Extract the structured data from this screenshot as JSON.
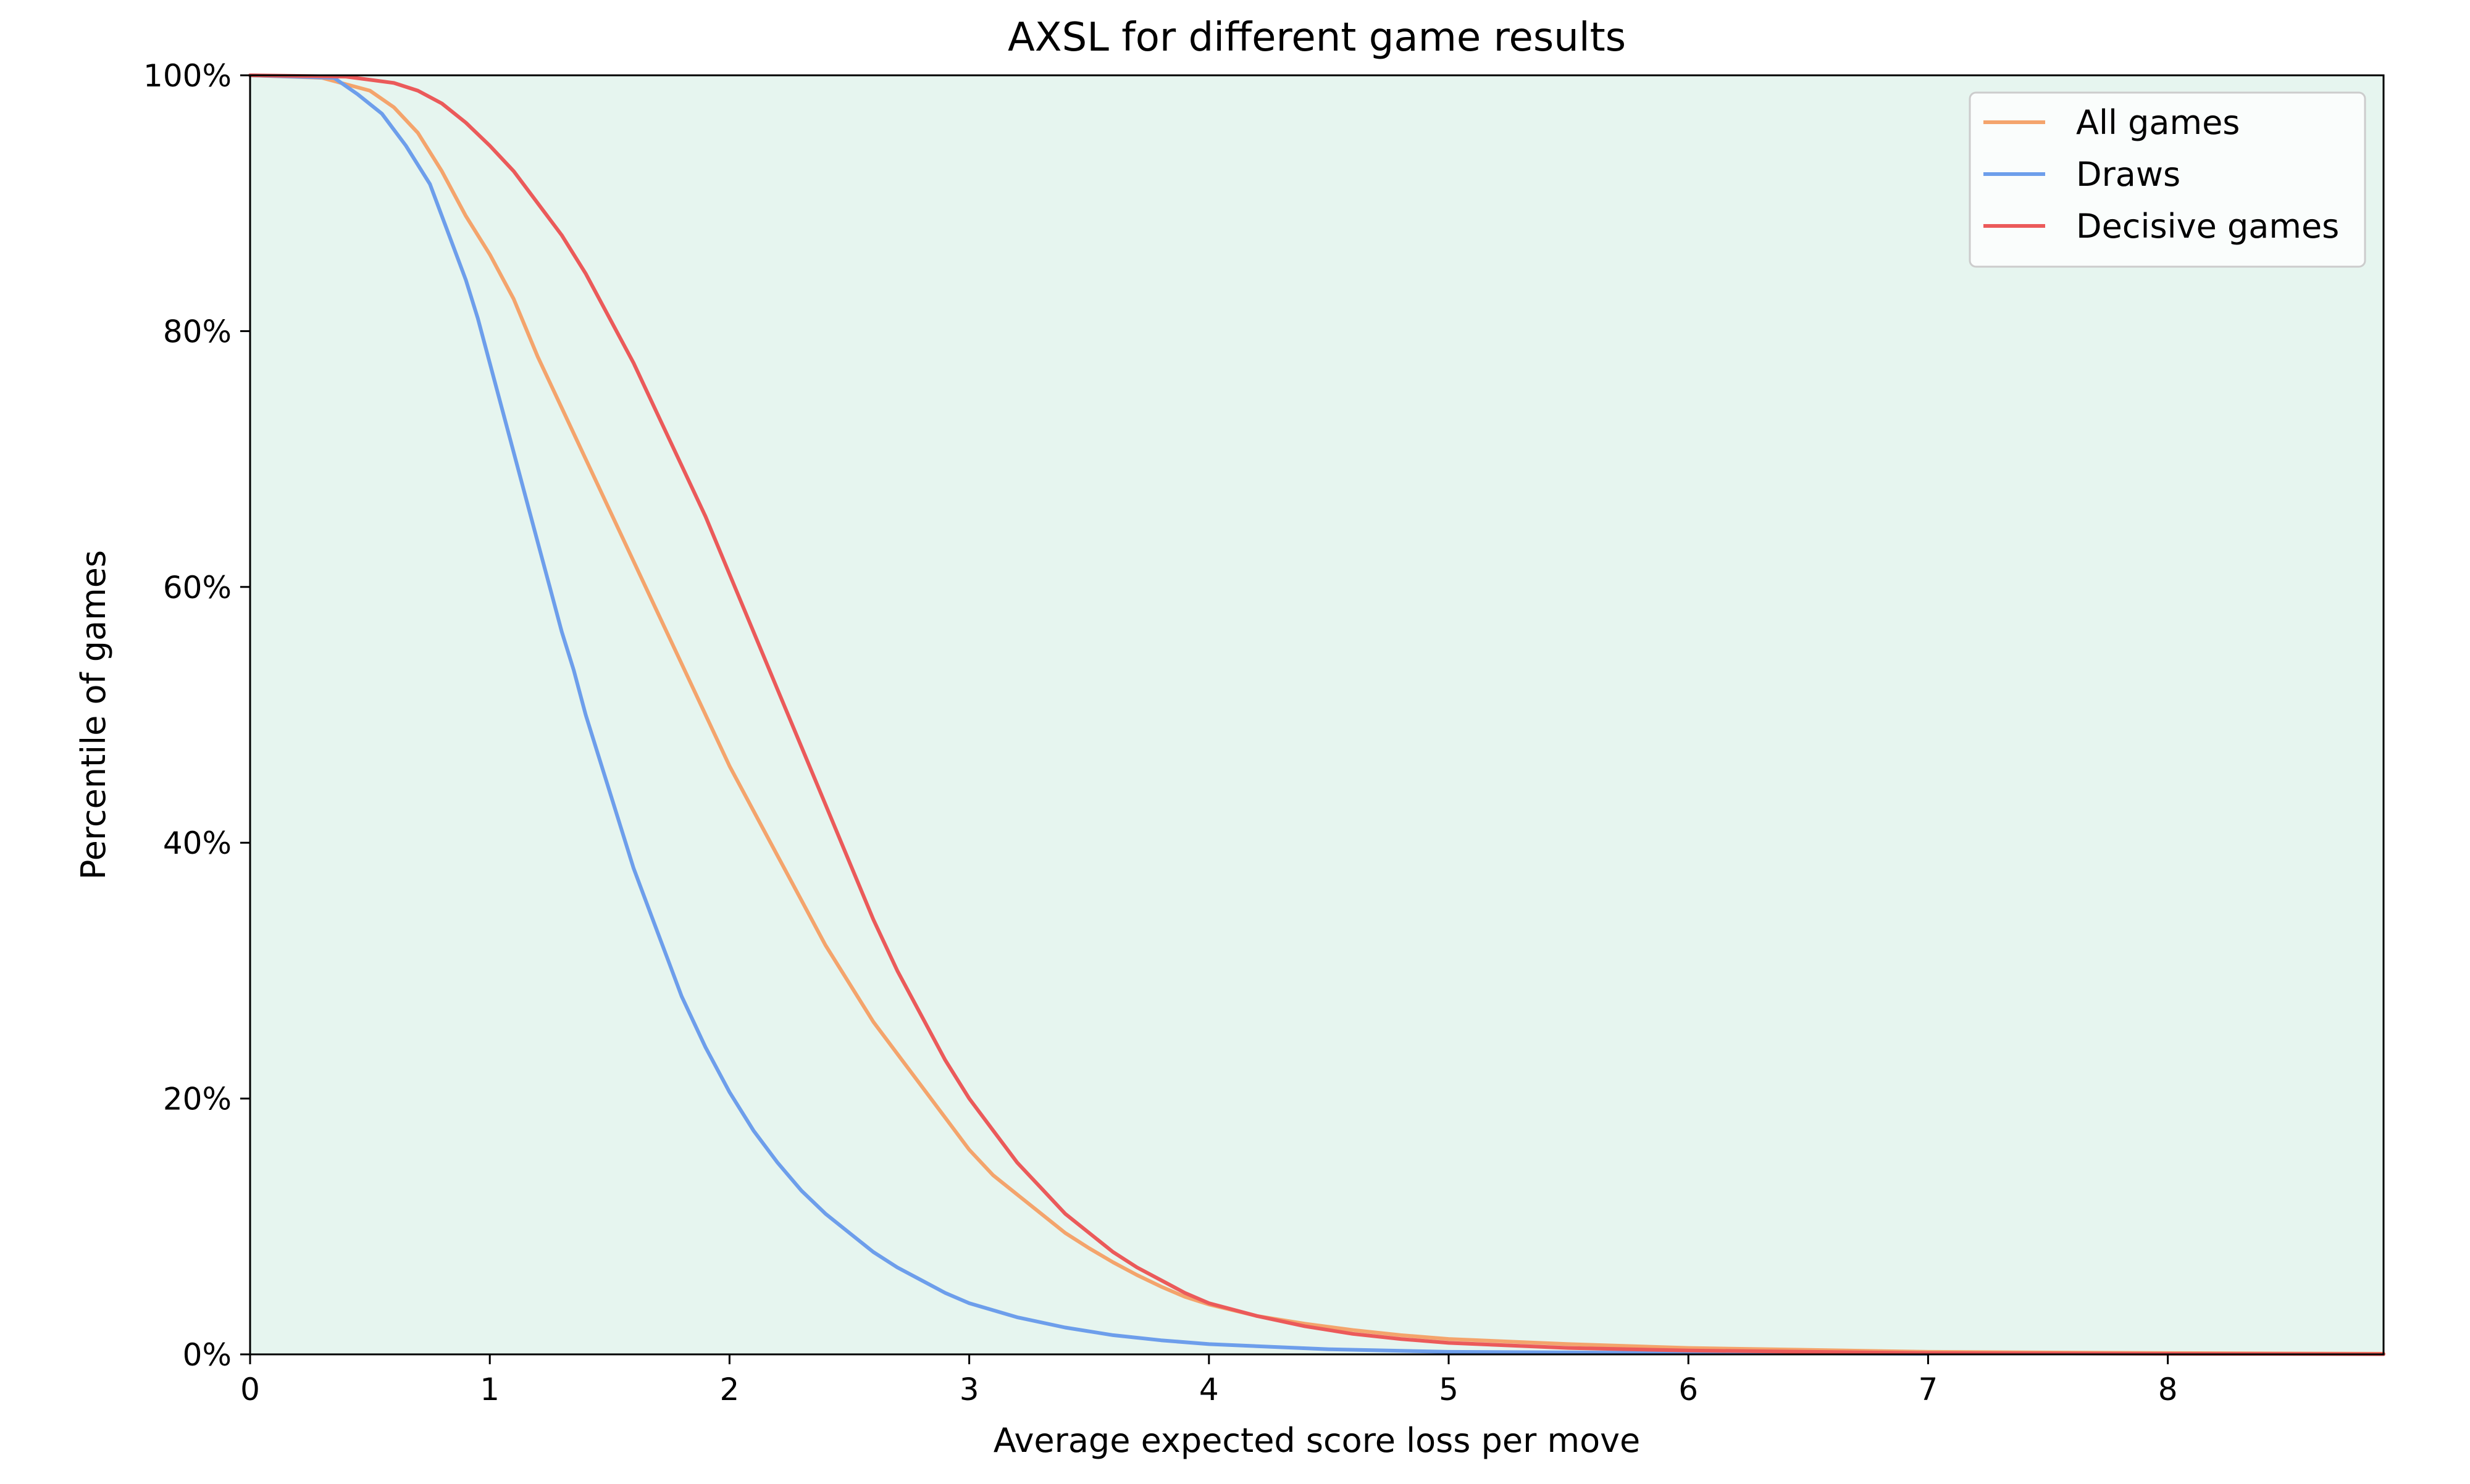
{
  "chart_data": {
    "type": "line",
    "title": "AXSL for different game results",
    "xlabel": "Average expected score loss per move",
    "ylabel": "Percentile of games",
    "xlim": [
      0,
      8.9
    ],
    "ylim": [
      0,
      100
    ],
    "x_ticks": [
      0,
      1,
      2,
      3,
      4,
      5,
      6,
      7,
      8
    ],
    "x_tick_labels": [
      "0",
      "1",
      "2",
      "3",
      "4",
      "5",
      "6",
      "7",
      "8"
    ],
    "y_ticks": [
      0,
      20,
      40,
      60,
      80,
      100
    ],
    "y_tick_labels": [
      "0%",
      "20%",
      "40%",
      "60%",
      "80%",
      "100%"
    ],
    "grid": false,
    "plot_background": "#e6f5ef",
    "legend": {
      "position": "top-right"
    },
    "series": [
      {
        "name": "All games",
        "color": "#f4a46c",
        "points": [
          [
            0,
            100
          ],
          [
            0.3,
            99.8
          ],
          [
            0.5,
            98.8
          ],
          [
            0.6,
            97.5
          ],
          [
            0.7,
            95.5
          ],
          [
            0.8,
            92.5
          ],
          [
            0.9,
            89
          ],
          [
            1.0,
            86
          ],
          [
            1.1,
            82.5
          ],
          [
            1.2,
            78
          ],
          [
            1.3,
            74
          ],
          [
            1.4,
            70
          ],
          [
            1.5,
            66
          ],
          [
            1.6,
            62
          ],
          [
            1.7,
            58
          ],
          [
            1.8,
            54
          ],
          [
            1.9,
            50
          ],
          [
            2.0,
            46
          ],
          [
            2.1,
            42.5
          ],
          [
            2.2,
            39
          ],
          [
            2.3,
            35.5
          ],
          [
            2.4,
            32
          ],
          [
            2.5,
            29
          ],
          [
            2.6,
            26
          ],
          [
            2.7,
            23.5
          ],
          [
            2.8,
            21
          ],
          [
            2.9,
            18.5
          ],
          [
            3.0,
            16
          ],
          [
            3.1,
            14
          ],
          [
            3.2,
            12.5
          ],
          [
            3.3,
            11
          ],
          [
            3.4,
            9.5
          ],
          [
            3.5,
            8.3
          ],
          [
            3.6,
            7.2
          ],
          [
            3.7,
            6.2
          ],
          [
            3.8,
            5.3
          ],
          [
            3.9,
            4.5
          ],
          [
            4.0,
            3.9
          ],
          [
            4.2,
            3.0
          ],
          [
            4.4,
            2.4
          ],
          [
            4.6,
            1.9
          ],
          [
            4.8,
            1.5
          ],
          [
            5.0,
            1.2
          ],
          [
            5.5,
            0.8
          ],
          [
            6.0,
            0.5
          ],
          [
            7.0,
            0.2
          ],
          [
            8.0,
            0.1
          ],
          [
            8.9,
            0.05
          ]
        ]
      },
      {
        "name": "Draws",
        "color": "#6d9eeb",
        "points": [
          [
            0,
            100
          ],
          [
            0.35,
            99.8
          ],
          [
            0.45,
            98.5
          ],
          [
            0.55,
            97
          ],
          [
            0.65,
            94.5
          ],
          [
            0.75,
            91.5
          ],
          [
            0.8,
            89
          ],
          [
            0.85,
            86.5
          ],
          [
            0.9,
            84
          ],
          [
            0.95,
            81
          ],
          [
            1.0,
            77.5
          ],
          [
            1.05,
            74
          ],
          [
            1.1,
            70.5
          ],
          [
            1.15,
            67
          ],
          [
            1.2,
            63.5
          ],
          [
            1.25,
            60
          ],
          [
            1.3,
            56.5
          ],
          [
            1.35,
            53.5
          ],
          [
            1.4,
            50
          ],
          [
            1.45,
            47
          ],
          [
            1.5,
            44
          ],
          [
            1.55,
            41
          ],
          [
            1.6,
            38
          ],
          [
            1.65,
            35.5
          ],
          [
            1.7,
            33
          ],
          [
            1.75,
            30.5
          ],
          [
            1.8,
            28
          ],
          [
            1.85,
            26
          ],
          [
            1.9,
            24
          ],
          [
            2.0,
            20.5
          ],
          [
            2.1,
            17.5
          ],
          [
            2.2,
            15
          ],
          [
            2.3,
            12.8
          ],
          [
            2.4,
            11
          ],
          [
            2.5,
            9.5
          ],
          [
            2.6,
            8
          ],
          [
            2.7,
            6.8
          ],
          [
            2.8,
            5.8
          ],
          [
            2.9,
            4.8
          ],
          [
            3.0,
            4
          ],
          [
            3.2,
            2.9
          ],
          [
            3.4,
            2.1
          ],
          [
            3.6,
            1.5
          ],
          [
            3.8,
            1.1
          ],
          [
            4.0,
            0.8
          ],
          [
            4.5,
            0.4
          ],
          [
            5.0,
            0.2
          ],
          [
            6.0,
            0.1
          ],
          [
            7.0,
            0.05
          ]
        ]
      },
      {
        "name": "Decisive games",
        "color": "#eb5a5a",
        "points": [
          [
            0,
            100
          ],
          [
            0.4,
            99.9
          ],
          [
            0.6,
            99.4
          ],
          [
            0.7,
            98.8
          ],
          [
            0.8,
            97.8
          ],
          [
            0.9,
            96.3
          ],
          [
            1.0,
            94.5
          ],
          [
            1.1,
            92.5
          ],
          [
            1.2,
            90
          ],
          [
            1.3,
            87.5
          ],
          [
            1.4,
            84.5
          ],
          [
            1.5,
            81
          ],
          [
            1.6,
            77.5
          ],
          [
            1.7,
            73.5
          ],
          [
            1.8,
            69.5
          ],
          [
            1.9,
            65.5
          ],
          [
            2.0,
            61
          ],
          [
            2.1,
            56.5
          ],
          [
            2.2,
            52
          ],
          [
            2.3,
            47.5
          ],
          [
            2.4,
            43
          ],
          [
            2.5,
            38.5
          ],
          [
            2.6,
            34
          ],
          [
            2.7,
            30
          ],
          [
            2.8,
            26.5
          ],
          [
            2.9,
            23
          ],
          [
            3.0,
            20
          ],
          [
            3.1,
            17.5
          ],
          [
            3.2,
            15
          ],
          [
            3.3,
            13
          ],
          [
            3.4,
            11
          ],
          [
            3.5,
            9.5
          ],
          [
            3.6,
            8
          ],
          [
            3.7,
            6.8
          ],
          [
            3.8,
            5.8
          ],
          [
            3.9,
            4.8
          ],
          [
            4.0,
            4
          ],
          [
            4.2,
            3
          ],
          [
            4.4,
            2.2
          ],
          [
            4.6,
            1.6
          ],
          [
            4.8,
            1.2
          ],
          [
            5.0,
            0.9
          ],
          [
            5.5,
            0.5
          ],
          [
            6.0,
            0.3
          ],
          [
            7.0,
            0.1
          ],
          [
            8.0,
            0.05
          ],
          [
            8.9,
            0.02
          ]
        ]
      }
    ]
  }
}
